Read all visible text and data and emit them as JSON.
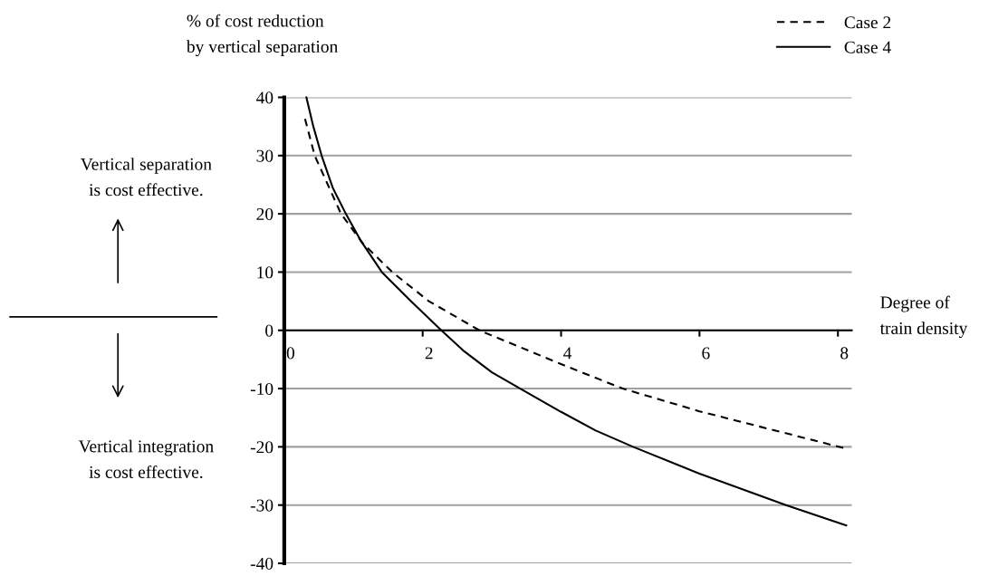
{
  "chart_data": {
    "type": "line",
    "ylabel": "% of cost reduction\nby vertical separation",
    "xlabel": "Degree of\ntrain density",
    "xlim": [
      0,
      8.2
    ],
    "xticks": [
      0,
      2,
      4,
      6,
      8
    ],
    "ylim": [
      -40,
      40
    ],
    "yticks": [
      -40,
      -30,
      -20,
      -10,
      0,
      10,
      20,
      30,
      40
    ],
    "grid": "y",
    "legend": "top right",
    "series": [
      {
        "name": "Case 2",
        "color": "#000000",
        "line_style": "dashed",
        "x": [
          0.3,
          0.44,
          0.82,
          1.13,
          1.56,
          2.09,
          2.82,
          4,
          4.89,
          6,
          8.12
        ],
        "values": [
          36.3,
          30,
          20,
          15,
          10,
          5,
          0,
          -5.8,
          -10,
          -13.9,
          -20.3
        ]
      },
      {
        "name": "Case 4",
        "color": "#000000",
        "line_style": "solid",
        "x": [
          0.32,
          0.42,
          0.54,
          0.7,
          0.89,
          1.1,
          1.41,
          1.83,
          2.27,
          2.6,
          3,
          3.41,
          4,
          4.5,
          5.04,
          6,
          7.25,
          8.12
        ],
        "values": [
          40,
          35,
          30,
          24.5,
          20,
          15.5,
          10,
          5,
          0,
          -3.6,
          -7.2,
          -10,
          -14,
          -17.2,
          -20,
          -24.6,
          -30,
          -33.5
        ]
      }
    ],
    "annotations": [
      "Vertical separation\nis cost effective.",
      "Vertical integration\nis cost effective."
    ]
  }
}
